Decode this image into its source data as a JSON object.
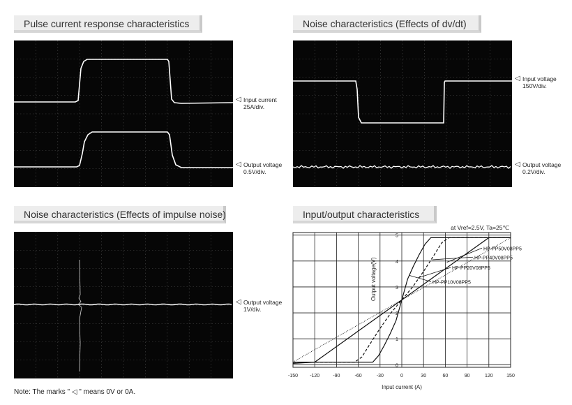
{
  "panels": {
    "pulse": {
      "title": "Pulse current response characteristics",
      "markers": [
        {
          "line1": "Input current",
          "line2": "25A/div."
        },
        {
          "line1": "Output voltage",
          "line2": "0.5V/div."
        }
      ]
    },
    "dvdt": {
      "title": "Noise characteristics (Effects of dv/dt)",
      "markers": [
        {
          "line1": "Input voltage",
          "line2": "150V/div."
        },
        {
          "line1": "Output voltage",
          "line2": "0.2V/div."
        }
      ]
    },
    "impulse": {
      "title": "Noise characteristics (Effects of impulse noise)",
      "markers": [
        {
          "line1": "Output voltage",
          "line2": "1V/div."
        }
      ]
    },
    "io": {
      "title": "Input/output characteristics"
    }
  },
  "marker_glyph": "◁",
  "note": "Note: The marks \" ◁ \" means 0V or 0A.",
  "colors": {
    "scope_bg": "#060606",
    "trace": "#ffffff",
    "grid": "#5a5a5a"
  },
  "chart_data": {
    "type": "line",
    "title": "Input/output characteristics",
    "subtitle": "at Vref=2.5V, Ta=25℃",
    "xlabel": "Input current (A)",
    "ylabel": "Output voltage(V)",
    "xlim": [
      -150,
      150
    ],
    "ylim": [
      -0.1,
      5.1
    ],
    "xticks": [
      -150,
      -120,
      -90,
      -60,
      -30,
      0,
      30,
      60,
      90,
      120,
      150
    ],
    "yticks": [
      0,
      1,
      2,
      3,
      4,
      5
    ],
    "grid": true,
    "series": [
      {
        "name": "HP-PP10V08PP5",
        "style": "solid",
        "x": [
          -150,
          -40,
          -32,
          -24,
          -16,
          -8,
          0,
          8,
          16,
          24,
          32,
          40,
          150
        ],
        "y": [
          0.1,
          0.1,
          0.35,
          0.75,
          1.2,
          1.7,
          2.5,
          3.3,
          3.8,
          4.25,
          4.65,
          4.9,
          4.9
        ]
      },
      {
        "name": "HP-PP20V08PP5",
        "style": "dashed",
        "x": [
          -150,
          -65,
          -55,
          -45,
          -30,
          -15,
          0,
          15,
          30,
          45,
          55,
          65,
          150
        ],
        "y": [
          0.1,
          0.1,
          0.3,
          0.75,
          1.4,
          2.0,
          2.5,
          3.0,
          3.6,
          4.25,
          4.7,
          4.9,
          4.9
        ]
      },
      {
        "name": "HP-PP40V08PP5",
        "style": "solid",
        "x": [
          -150,
          -120,
          0,
          120,
          150
        ],
        "y": [
          0.05,
          0.1,
          2.5,
          4.9,
          4.9
        ]
      },
      {
        "name": "HP-PP50V08PP5",
        "style": "dotted",
        "x": [
          -150,
          0,
          150
        ],
        "y": [
          0.1,
          2.5,
          4.9
        ]
      }
    ]
  }
}
